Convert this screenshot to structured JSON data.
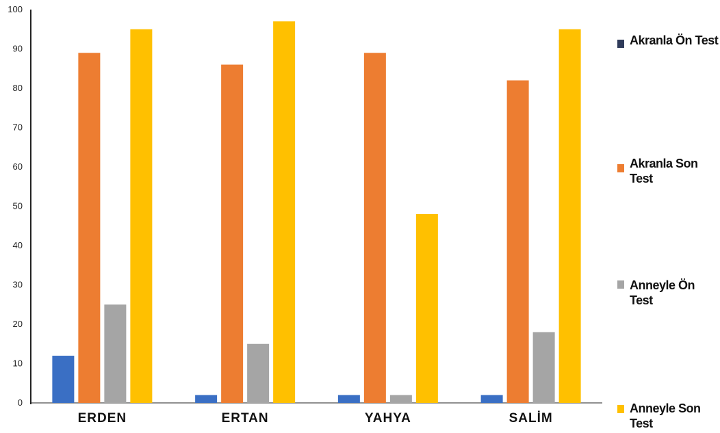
{
  "chart_data": {
    "type": "bar",
    "categories": [
      "ERDEN",
      "ERTAN",
      "YAHYA",
      "SALİM"
    ],
    "series": [
      {
        "name": "Akranla Ön Test",
        "color": "#3a6fc4",
        "values": [
          12,
          2,
          2,
          2
        ]
      },
      {
        "name": "Akranla Son Test",
        "color": "#ed7d31",
        "values": [
          89,
          86,
          89,
          82
        ]
      },
      {
        "name": "Anneyle Ön Test",
        "color": "#a5a5a5",
        "values": [
          25,
          15,
          2,
          18
        ]
      },
      {
        "name": "Anneyle Son Test",
        "color": "#ffc000",
        "values": [
          95,
          97,
          48,
          95
        ]
      }
    ],
    "ylim": [
      0,
      100
    ],
    "yticks": [
      0,
      10,
      20,
      30,
      40,
      50,
      60,
      70,
      80,
      90,
      100
    ],
    "legend_position": "right",
    "grid": false
  }
}
